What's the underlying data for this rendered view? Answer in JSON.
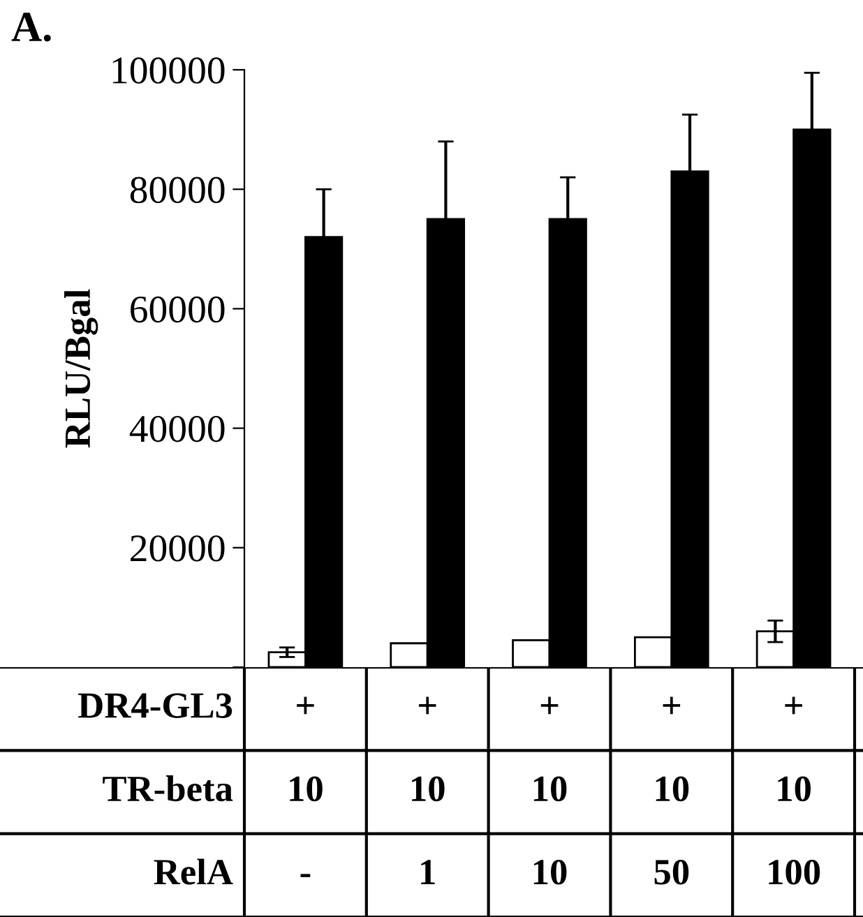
{
  "chart_data": {
    "type": "bar",
    "title": "A.",
    "ylabel": "RLU/Bgal",
    "categories": [
      "+\n10\n-",
      "+\n10\n1",
      "+\n10\n10",
      "+\n10\n50",
      "+\n10\n100"
    ],
    "series": [
      {
        "color": "#ffffff",
        "values": [
          2500,
          4000,
          4500,
          5000,
          6000
        ],
        "errors": [
          800,
          null,
          null,
          null,
          1800
        ]
      },
      {
        "color": "#000000",
        "values": [
          72000,
          75000,
          75000,
          83000,
          90000
        ],
        "errors": [
          8000,
          13000,
          7000,
          9500,
          9500
        ]
      }
    ],
    "ylim": [
      0,
      100000
    ],
    "yticks": [
      {
        "value": 0,
        "label": null
      },
      20000,
      40000,
      60000,
      80000,
      100000
    ],
    "grid": false,
    "legend": false,
    "annotations": [
      "DR4-GL3",
      "TR-beta",
      "RelA"
    ]
  }
}
